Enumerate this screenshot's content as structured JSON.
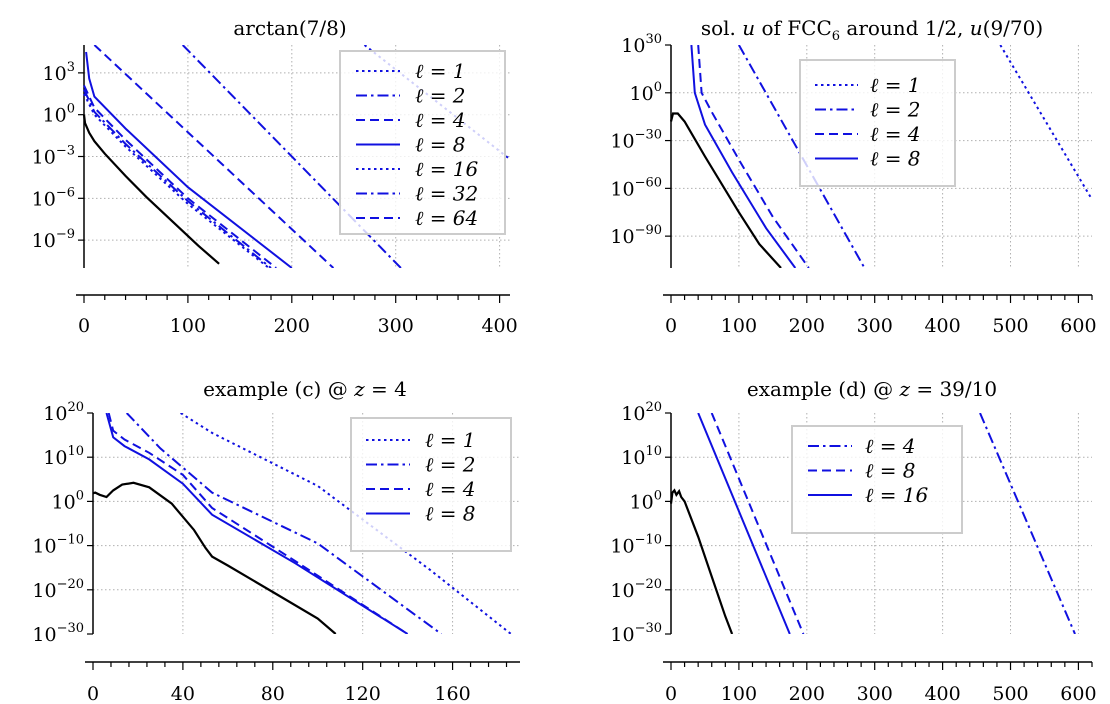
{
  "chart_data": [
    {
      "type": "line",
      "title": "arctan(7/8)",
      "yscale": "log",
      "grid": true,
      "legend_position": "top-right",
      "xlim": [
        0,
        410
      ],
      "ylim_log10": [
        -11,
        5
      ],
      "xticks": [
        "0",
        "100",
        "200",
        "300",
        "400"
      ],
      "xtick_values": [
        0,
        100,
        200,
        300,
        400
      ],
      "ytick_exponents": [
        -9,
        -6,
        -3,
        0,
        3
      ],
      "ytick_labels": [
        {
          "base": "10",
          "exp": "−9"
        },
        {
          "base": "10",
          "exp": "−6"
        },
        {
          "base": "10",
          "exp": "−3"
        },
        {
          "base": "10",
          "exp": "0",
          "plain": "10^0"
        },
        {
          "base": "10",
          "exp": "3"
        }
      ],
      "ref_series": {
        "color": "#000000",
        "x": [
          0,
          1,
          5,
          10,
          20,
          40,
          60,
          90,
          110,
          130
        ],
        "log10y": [
          0,
          -0.6,
          -1.3,
          -1.9,
          -2.8,
          -4.4,
          -5.9,
          -8.0,
          -9.4,
          -10.7
        ]
      },
      "series": [
        {
          "name": "ℓ = 1",
          "style": "dotted",
          "color": "#1010e0",
          "x": [
            0,
            10,
            40,
            100,
            178
          ],
          "log10y": [
            1.5,
            0.0,
            -2.3,
            -6.4,
            -11.0
          ]
        },
        {
          "name": "ℓ = 2",
          "style": "dashdot",
          "color": "#1010e0",
          "x": [
            0,
            10,
            40,
            100,
            180
          ],
          "log10y": [
            1.8,
            0.2,
            -2.1,
            -6.2,
            -11.0
          ]
        },
        {
          "name": "ℓ = 4",
          "style": "dashed",
          "color": "#1010e0",
          "x": [
            0,
            10,
            40,
            100,
            185
          ],
          "log10y": [
            2.1,
            0.5,
            -1.8,
            -6.0,
            -11.0
          ]
        },
        {
          "name": "ℓ = 8",
          "style": "solid",
          "color": "#1010e0",
          "x": [
            2,
            5,
            10,
            40,
            100,
            200
          ],
          "log10y": [
            4.5,
            2.6,
            1.3,
            -1.0,
            -5.2,
            -11.0
          ]
        },
        {
          "name": "ℓ = 16",
          "style": "dotted",
          "color": "#1010e0",
          "x": [
            270,
            410
          ],
          "log10y": [
            5,
            -3.2
          ]
        },
        {
          "name": "ℓ = 32",
          "style": "dashdot",
          "color": "#1010e0",
          "x": [
            95,
            305
          ],
          "log10y": [
            5,
            -11.0
          ]
        },
        {
          "name": "ℓ = 64",
          "style": "dashed",
          "color": "#1010e0",
          "x": [
            10,
            240
          ],
          "log10y": [
            5,
            -11.0
          ]
        }
      ]
    },
    {
      "type": "line",
      "title": "sol. u of FCC6 around 1/2, u(9/70)",
      "yscale": "log",
      "grid": true,
      "legend_position": "top-center",
      "xlim": [
        0,
        620
      ],
      "ylim_log10": [
        -110,
        30
      ],
      "xticks": [
        "0",
        "100",
        "200",
        "300",
        "400",
        "500",
        "600"
      ],
      "xtick_values": [
        0,
        100,
        200,
        300,
        400,
        500,
        600
      ],
      "ytick_exponents": [
        -90,
        -60,
        -30,
        0,
        30
      ],
      "ytick_labels": [
        {
          "base": "10",
          "exp": "−90"
        },
        {
          "base": "10",
          "exp": "−60"
        },
        {
          "base": "10",
          "exp": "−30"
        },
        {
          "base": "10",
          "exp": "0"
        },
        {
          "base": "10",
          "exp": "30"
        }
      ],
      "ref_series": {
        "color": "#000000",
        "x": [
          0,
          3,
          10,
          20,
          50,
          100,
          130,
          162
        ],
        "log10y": [
          -18,
          -13,
          -13,
          -18,
          -40,
          -75,
          -95,
          -110
        ]
      },
      "series": [
        {
          "name": "ℓ = 1",
          "style": "dotted",
          "color": "#1010e0",
          "x": [
            485,
            620
          ],
          "log10y": [
            30,
            -67
          ]
        },
        {
          "name": "ℓ = 2",
          "style": "dashdot",
          "color": "#1010e0",
          "x": [
            100,
            285
          ],
          "log10y": [
            30,
            -110
          ]
        },
        {
          "name": "ℓ = 4",
          "style": "dashed",
          "color": "#1010e0",
          "x": [
            40,
            45,
            60,
            100,
            150,
            203
          ],
          "log10y": [
            30,
            0,
            -12,
            -42,
            -78,
            -110
          ]
        },
        {
          "name": "ℓ = 8",
          "style": "solid",
          "color": "#1010e0",
          "x": [
            30,
            35,
            50,
            90,
            140,
            183
          ],
          "log10y": [
            30,
            0,
            -20,
            -50,
            -85,
            -110
          ]
        }
      ]
    },
    {
      "type": "line",
      "title": "example (c) @ z = 4",
      "yscale": "log",
      "grid": true,
      "legend_position": "top-right",
      "xlim": [
        0,
        190
      ],
      "ylim_log10": [
        -30,
        20
      ],
      "xticks": [
        "0",
        "40",
        "80",
        "120",
        "160"
      ],
      "xtick_values": [
        0,
        40,
        80,
        120,
        160
      ],
      "ytick_exponents": [
        -30,
        -20,
        -10,
        0,
        10,
        20
      ],
      "ytick_labels": [
        {
          "base": "10",
          "exp": "−30"
        },
        {
          "base": "10",
          "exp": "−20"
        },
        {
          "base": "10",
          "exp": "−10"
        },
        {
          "base": "10",
          "exp": "0"
        },
        {
          "base": "10",
          "exp": "10"
        },
        {
          "base": "10",
          "exp": "20"
        }
      ],
      "ref_series": {
        "color": "#000000",
        "x": [
          0,
          1,
          3,
          6,
          9,
          13,
          18,
          25,
          35,
          45,
          50,
          53,
          60,
          80,
          100,
          108
        ],
        "log10y": [
          1.8,
          2.0,
          1.5,
          1.0,
          2.5,
          3.8,
          4.2,
          3.2,
          -0.5,
          -6.5,
          -10.5,
          -12.5,
          -14.5,
          -20.5,
          -26.5,
          -30
        ]
      },
      "series": [
        {
          "name": "ℓ = 1",
          "style": "dotted",
          "color": "#1010e0",
          "x": [
            39,
            53,
            100,
            150,
            186
          ],
          "log10y": [
            20,
            15.5,
            3.5,
            -15.5,
            -30
          ]
        },
        {
          "name": "ℓ = 2",
          "style": "dashdot",
          "color": "#1010e0",
          "x": [
            15,
            30,
            53,
            100,
            155
          ],
          "log10y": [
            20,
            12,
            2,
            -9.5,
            -30
          ]
        },
        {
          "name": "ℓ = 4",
          "style": "dashed",
          "color": "#1010e0",
          "x": [
            7,
            9,
            14,
            25,
            40,
            53,
            90,
            140
          ],
          "log10y": [
            20,
            16,
            14,
            11,
            6,
            -1.5,
            -13.5,
            -30
          ]
        },
        {
          "name": "ℓ = 8",
          "style": "solid",
          "color": "#1010e0",
          "x": [
            6,
            9,
            14,
            25,
            40,
            53,
            90,
            140
          ],
          "log10y": [
            20,
            14.5,
            12.5,
            9.5,
            4,
            -3,
            -14,
            -30
          ]
        }
      ]
    },
    {
      "type": "line",
      "title": "example (d) @ z = 39/10",
      "yscale": "log",
      "grid": true,
      "legend_position": "top-center",
      "xlim": [
        0,
        620
      ],
      "ylim_log10": [
        -30,
        20
      ],
      "xticks": [
        "0",
        "100",
        "200",
        "300",
        "400",
        "500",
        "600"
      ],
      "xtick_values": [
        0,
        100,
        200,
        300,
        400,
        500,
        600
      ],
      "ytick_exponents": [
        -30,
        -20,
        -10,
        0,
        10,
        20
      ],
      "ytick_labels": [
        {
          "base": "10",
          "exp": "−30"
        },
        {
          "base": "10",
          "exp": "−20"
        },
        {
          "base": "10",
          "exp": "−10"
        },
        {
          "base": "10",
          "exp": "0"
        },
        {
          "base": "10",
          "exp": "10"
        },
        {
          "base": "10",
          "exp": "20"
        }
      ],
      "ref_series": {
        "color": "#000000",
        "x": [
          0,
          2,
          5,
          8,
          12,
          15,
          20,
          40,
          60,
          80,
          90
        ],
        "log10y": [
          -0.5,
          2,
          2.5,
          1.5,
          2.3,
          1,
          0,
          -8,
          -17,
          -26,
          -30
        ]
      },
      "series": [
        {
          "name": "ℓ = 4",
          "style": "dashdot",
          "color": "#1010e0",
          "x": [
            455,
            595
          ],
          "log10y": [
            20,
            -30
          ]
        },
        {
          "name": "ℓ = 8",
          "style": "dashed",
          "color": "#1010e0",
          "x": [
            60,
            195
          ],
          "log10y": [
            20,
            -30
          ]
        },
        {
          "name": "ℓ = 16",
          "style": "solid",
          "color": "#1010e0",
          "x": [
            40,
            175
          ],
          "log10y": [
            20,
            -30
          ]
        }
      ]
    }
  ],
  "titles": {
    "p0": "arctan(7/8)",
    "p1_pre": "sol. ",
    "p1_var": "u",
    "p1_mid": " of FCC",
    "p1_sub": "6",
    "p1_post": " around 1/2, ",
    "p1_fn": "u",
    "p1_arg": "(9/70)",
    "p2_pre": "example (c) @ ",
    "p2_var": "z",
    "p2_post": " = 4",
    "p3_pre": "example (d) @ ",
    "p3_var": "z",
    "p3_post": " = 39/10"
  }
}
